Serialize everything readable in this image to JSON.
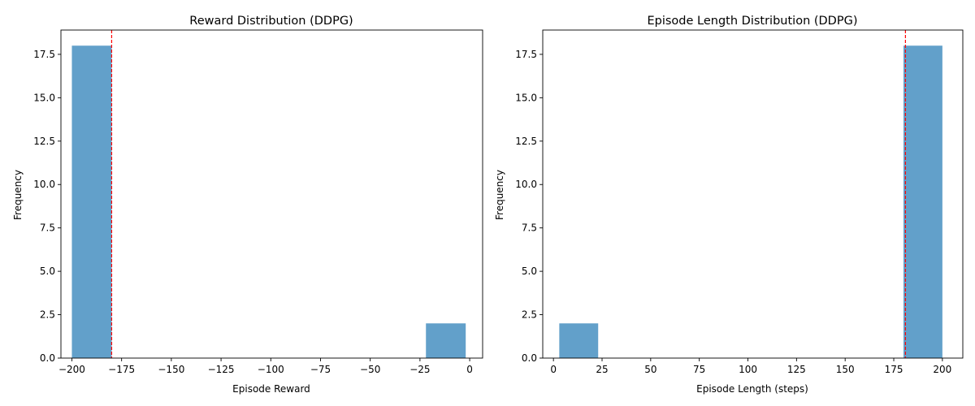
{
  "chart_data": [
    {
      "type": "bar",
      "title": "Reward Distribution (DDPG)",
      "xlabel": "Episode Reward",
      "ylabel": "Frequency",
      "xlim": [
        -205.5,
        6.5
      ],
      "ylim": [
        0,
        18.9
      ],
      "xticks": [
        -200,
        -175,
        -150,
        -125,
        -100,
        -75,
        -50,
        -25,
        0
      ],
      "xtick_labels": [
        "−200",
        "−175",
        "−150",
        "−125",
        "−100",
        "−75",
        "−50",
        "−25",
        "0"
      ],
      "yticks": [
        0,
        2.5,
        5,
        7.5,
        10,
        12.5,
        15,
        17.5
      ],
      "ytick_labels": [
        "0.0",
        "2.5",
        "5.0",
        "7.5",
        "10.0",
        "12.5",
        "15.0",
        "17.5"
      ],
      "bins": [
        {
          "x0": -200,
          "x1": -180,
          "count": 18
        },
        {
          "x0": -22,
          "x1": -2,
          "count": 2
        }
      ],
      "mean_line": -180,
      "bar_color": "#1f77b4",
      "bar_opacity": 0.7,
      "line_color": "#ff0000",
      "grid": false
    },
    {
      "type": "bar",
      "title": "Episode Length Distribution (DDPG)",
      "xlabel": "Episode Length (steps)",
      "ylabel": "Frequency",
      "xlim": [
        -5.5,
        210.5
      ],
      "ylim": [
        0,
        18.9
      ],
      "xticks": [
        0,
        25,
        50,
        75,
        100,
        125,
        150,
        175,
        200
      ],
      "xtick_labels": [
        "0",
        "25",
        "50",
        "75",
        "100",
        "125",
        "150",
        "175",
        "200"
      ],
      "yticks": [
        0,
        2.5,
        5,
        7.5,
        10,
        12.5,
        15,
        17.5
      ],
      "ytick_labels": [
        "0.0",
        "2.5",
        "5.0",
        "7.5",
        "10.0",
        "12.5",
        "15.0",
        "17.5"
      ],
      "bins": [
        {
          "x0": 3,
          "x1": 23,
          "count": 2
        },
        {
          "x0": 180,
          "x1": 200,
          "count": 18
        }
      ],
      "mean_line": 181,
      "bar_color": "#1f77b4",
      "bar_opacity": 0.7,
      "line_color": "#ff0000",
      "grid": false
    }
  ]
}
